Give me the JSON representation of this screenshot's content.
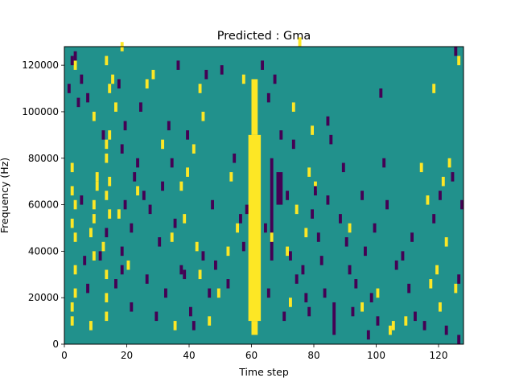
{
  "chart_data": {
    "type": "heatmap",
    "title": "Predicted : Gma",
    "xlabel": "Time step",
    "ylabel": "Frequency (Hz)",
    "xlim": [
      0,
      128
    ],
    "ylim": [
      0,
      128000
    ],
    "x_ticks": [
      0,
      20,
      40,
      60,
      80,
      100,
      120
    ],
    "y_ticks": [
      0,
      20000,
      40000,
      60000,
      80000,
      100000,
      120000
    ],
    "x_tick_labels": [
      "0",
      "20",
      "40",
      "60",
      "80",
      "100",
      "120"
    ],
    "y_tick_labels": [
      "0",
      "20000",
      "40000",
      "60000",
      "80000",
      "100000",
      "120000"
    ],
    "grid": false,
    "values": [
      -1,
      0,
      1
    ],
    "colors": {
      "background": "#21918c",
      "positive": "#fde725",
      "negative": "#440154"
    },
    "time_bins": 128,
    "freq_bins": 64,
    "bin_height_hz": 2000,
    "bands_positive": [
      {
        "t_start": 59,
        "t_end": 63,
        "f_start": 10000,
        "f_end": 90000
      },
      {
        "t_start": 60,
        "t_end": 62,
        "f_start": 4000,
        "f_end": 10000
      },
      {
        "t_start": 60,
        "t_end": 62,
        "f_start": 90000,
        "f_end": 114000
      }
    ],
    "cells_positive": [
      [
        2,
        8000
      ],
      [
        2,
        14000
      ],
      [
        3,
        20000
      ],
      [
        3,
        30000
      ],
      [
        3,
        44000
      ],
      [
        2,
        50000
      ],
      [
        3,
        58000
      ],
      [
        2,
        64000
      ],
      [
        2,
        74000
      ],
      [
        3,
        118000
      ],
      [
        8,
        6000
      ],
      [
        9,
        36000
      ],
      [
        8,
        46000
      ],
      [
        9,
        52000
      ],
      [
        9,
        58000
      ],
      [
        10,
        66000
      ],
      [
        10,
        70000
      ],
      [
        9,
        96000
      ],
      [
        13,
        10000
      ],
      [
        13,
        18000
      ],
      [
        13,
        28000
      ],
      [
        12,
        40000
      ],
      [
        14,
        54000
      ],
      [
        13,
        62000
      ],
      [
        14,
        68000
      ],
      [
        13,
        78000
      ],
      [
        13,
        84000
      ],
      [
        14,
        88000
      ],
      [
        13,
        120000
      ],
      [
        14,
        108000
      ],
      [
        15,
        112000
      ],
      [
        16,
        100000
      ],
      [
        18,
        126000
      ],
      [
        20,
        32000
      ],
      [
        17,
        54000
      ],
      [
        26,
        110000
      ],
      [
        23,
        64000
      ],
      [
        28,
        114000
      ],
      [
        31,
        84000
      ],
      [
        34,
        44000
      ],
      [
        37,
        66000
      ],
      [
        35,
        6000
      ],
      [
        38,
        52000
      ],
      [
        39,
        72000
      ],
      [
        42,
        40000
      ],
      [
        41,
        82000
      ],
      [
        43,
        108000
      ],
      [
        43,
        28000
      ],
      [
        44,
        96000
      ],
      [
        46,
        8000
      ],
      [
        49,
        20000
      ],
      [
        52,
        38000
      ],
      [
        53,
        70000
      ],
      [
        55,
        48000
      ],
      [
        57,
        112000
      ],
      [
        66,
        44000
      ],
      [
        71,
        38000
      ],
      [
        72,
        16000
      ],
      [
        73,
        100000
      ],
      [
        74,
        56000
      ],
      [
        75,
        128000
      ],
      [
        77,
        46000
      ],
      [
        78,
        72000
      ],
      [
        79,
        90000
      ],
      [
        80,
        66000
      ],
      [
        91,
        48000
      ],
      [
        95,
        14000
      ],
      [
        100,
        20000
      ],
      [
        104,
        4000
      ],
      [
        105,
        6000
      ],
      [
        109,
        8000
      ],
      [
        114,
        74000
      ],
      [
        116,
        60000
      ],
      [
        117,
        24000
      ],
      [
        119,
        30000
      ],
      [
        118,
        108000
      ],
      [
        120,
        14000
      ],
      [
        121,
        68000
      ],
      [
        122,
        42000
      ],
      [
        123,
        76000
      ],
      [
        125,
        22000
      ],
      [
        126,
        120000
      ]
    ],
    "bands_negative": [
      {
        "t_start": 68,
        "t_end": 70,
        "f_start": 60000,
        "f_end": 74000
      },
      {
        "t_start": 66,
        "t_end": 67,
        "f_start": 36000,
        "f_end": 80000
      },
      {
        "t_start": 86,
        "t_end": 87,
        "f_start": 4000,
        "f_end": 18000
      }
    ],
    "cells_negative": [
      [
        1,
        108000
      ],
      [
        2,
        120000
      ],
      [
        5,
        112000
      ],
      [
        4,
        102000
      ],
      [
        7,
        104000
      ],
      [
        3,
        122000
      ],
      [
        6,
        34000
      ],
      [
        5,
        60000
      ],
      [
        7,
        22000
      ],
      [
        11,
        36000
      ],
      [
        13,
        46000
      ],
      [
        12,
        88000
      ],
      [
        16,
        24000
      ],
      [
        18,
        30000
      ],
      [
        18,
        38000
      ],
      [
        19,
        58000
      ],
      [
        17,
        110000
      ],
      [
        18,
        82000
      ],
      [
        19,
        92000
      ],
      [
        21,
        14000
      ],
      [
        21,
        48000
      ],
      [
        22,
        70000
      ],
      [
        23,
        76000
      ],
      [
        24,
        100000
      ],
      [
        25,
        62000
      ],
      [
        26,
        26000
      ],
      [
        27,
        56000
      ],
      [
        29,
        10000
      ],
      [
        30,
        42000
      ],
      [
        31,
        66000
      ],
      [
        32,
        20000
      ],
      [
        33,
        92000
      ],
      [
        34,
        76000
      ],
      [
        35,
        50000
      ],
      [
        36,
        118000
      ],
      [
        37,
        30000
      ],
      [
        38,
        28000
      ],
      [
        39,
        88000
      ],
      [
        40,
        12000
      ],
      [
        41,
        6000
      ],
      [
        44,
        36000
      ],
      [
        45,
        114000
      ],
      [
        46,
        20000
      ],
      [
        47,
        58000
      ],
      [
        48,
        32000
      ],
      [
        50,
        116000
      ],
      [
        52,
        24000
      ],
      [
        54,
        78000
      ],
      [
        56,
        52000
      ],
      [
        57,
        40000
      ],
      [
        58,
        56000
      ],
      [
        63,
        118000
      ],
      [
        64,
        48000
      ],
      [
        65,
        20000
      ],
      [
        65,
        104000
      ],
      [
        67,
        112000
      ],
      [
        69,
        88000
      ],
      [
        70,
        10000
      ],
      [
        71,
        62000
      ],
      [
        72,
        36000
      ],
      [
        73,
        84000
      ],
      [
        74,
        26000
      ],
      [
        76,
        30000
      ],
      [
        77,
        18000
      ],
      [
        78,
        12000
      ],
      [
        79,
        54000
      ],
      [
        80,
        64000
      ],
      [
        81,
        44000
      ],
      [
        82,
        34000
      ],
      [
        83,
        20000
      ],
      [
        84,
        60000
      ],
      [
        84,
        94000
      ],
      [
        85,
        86000
      ],
      [
        88,
        52000
      ],
      [
        89,
        74000
      ],
      [
        90,
        42000
      ],
      [
        91,
        30000
      ],
      [
        92,
        12000
      ],
      [
        93,
        24000
      ],
      [
        95,
        62000
      ],
      [
        96,
        38000
      ],
      [
        97,
        2000
      ],
      [
        98,
        18000
      ],
      [
        99,
        48000
      ],
      [
        100,
        8000
      ],
      [
        101,
        106000
      ],
      [
        102,
        76000
      ],
      [
        103,
        58000
      ],
      [
        106,
        32000
      ],
      [
        108,
        36000
      ],
      [
        110,
        22000
      ],
      [
        111,
        44000
      ],
      [
        112,
        10000
      ],
      [
        115,
        6000
      ],
      [
        118,
        52000
      ],
      [
        120,
        62000
      ],
      [
        122,
        4000
      ],
      [
        124,
        70000
      ],
      [
        126,
        0
      ],
      [
        126,
        26000
      ],
      [
        127,
        58000
      ],
      [
        125,
        124000
      ]
    ]
  }
}
